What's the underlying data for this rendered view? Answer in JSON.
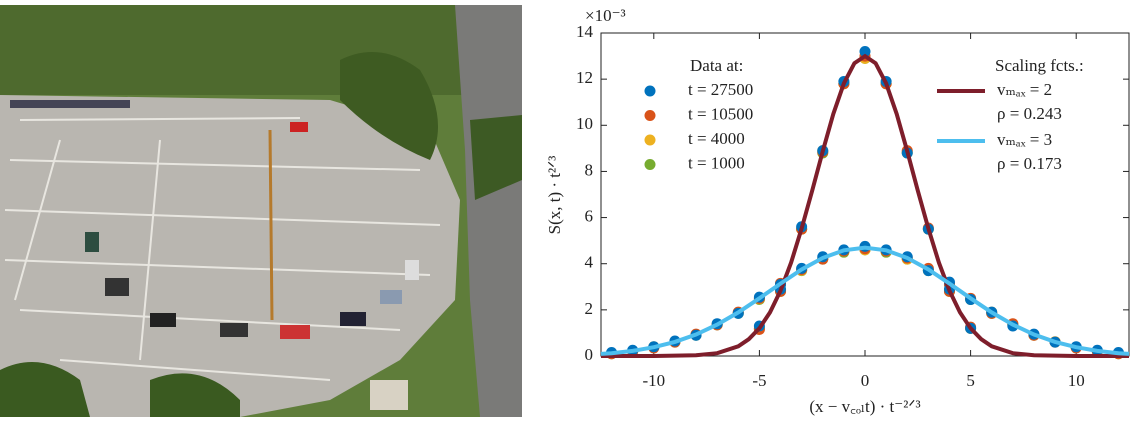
{
  "chart_data": {
    "type": "scatter",
    "y_multiplier": "×10⁻³",
    "x_label": "(x − v꜀ₒₗt) · t⁻²ᐟ³",
    "y_label": "S(x, t) · t²ᐟ³",
    "xlim": [
      -12.5,
      12.5
    ],
    "ylim": [
      0,
      14
    ],
    "xticks": [
      -10,
      -5,
      0,
      5,
      10
    ],
    "yticks": [
      0,
      2,
      4,
      6,
      8,
      10,
      12,
      14
    ],
    "grid": false,
    "legend_title": "Data at:",
    "x": [
      -12,
      -11,
      -10,
      -9,
      -8,
      -7,
      -6,
      -5,
      -4,
      -3,
      -2,
      -1,
      0,
      1,
      2,
      3,
      4,
      5,
      6,
      7,
      8,
      9,
      10,
      11,
      12,
      -5,
      -4,
      -3,
      -2,
      -1,
      0,
      1,
      2,
      3,
      4,
      5
    ],
    "series": [
      {
        "name": "t = 27500",
        "color": "#0072BD",
        "values": [
          0.15,
          0.25,
          0.4,
          0.65,
          0.9,
          1.4,
          1.85,
          2.55,
          3.1,
          3.8,
          4.3,
          4.6,
          4.75,
          4.6,
          4.3,
          3.7,
          3.2,
          2.45,
          1.9,
          1.3,
          0.95,
          0.6,
          0.4,
          0.25,
          0.15,
          1.3,
          2.9,
          5.6,
          8.9,
          11.9,
          13.2,
          11.9,
          8.8,
          5.5,
          2.9,
          1.2
        ]
      },
      {
        "name": "t = 10500",
        "color": "#D95319",
        "values": [
          0.1,
          0.2,
          0.35,
          0.6,
          0.95,
          1.35,
          1.9,
          2.5,
          3.15,
          3.75,
          4.2,
          4.55,
          4.65,
          4.55,
          4.25,
          3.8,
          3.1,
          2.5,
          1.85,
          1.4,
          0.9,
          0.6,
          0.35,
          0.2,
          0.1,
          1.15,
          2.8,
          5.5,
          8.85,
          11.8,
          13.0,
          11.8,
          8.9,
          5.55,
          2.8,
          1.25
        ]
      },
      {
        "name": "t = 4000",
        "color": "#EDB120",
        "values": [
          0.12,
          0.22,
          0.4,
          0.62,
          0.92,
          1.38,
          1.88,
          2.48,
          3.12,
          3.72,
          4.22,
          4.55,
          4.6,
          4.55,
          4.2,
          3.72,
          3.12,
          2.48,
          1.9,
          1.38,
          0.92,
          0.62,
          0.38,
          0.22,
          0.12,
          1.2,
          2.85,
          5.5,
          8.9,
          11.8,
          12.9,
          11.8,
          8.85,
          5.5,
          2.85,
          1.2
        ]
      },
      {
        "name": "t = 1000",
        "color": "#77AC30",
        "values": [
          0.1,
          0.2,
          0.38,
          0.6,
          0.9,
          1.35,
          1.85,
          2.45,
          3.1,
          3.7,
          4.2,
          4.5,
          4.6,
          4.5,
          4.2,
          3.7,
          3.1,
          2.45,
          1.85,
          1.35,
          0.9,
          0.6,
          0.38,
          0.2,
          0.1,
          1.2,
          2.8,
          5.5,
          8.8,
          11.8,
          12.9,
          11.8,
          8.8,
          5.5,
          2.8,
          1.2
        ]
      }
    ],
    "fits_title": "Scaling fcts.:",
    "fits": [
      {
        "name": "vₘₐₓ = 2",
        "rho": "ρ = 0.243",
        "color": "#7E1E2B",
        "x": [
          -12.5,
          -10,
          -8,
          -7,
          -6,
          -5.5,
          -5,
          -4.5,
          -4,
          -3.5,
          -3,
          -2.5,
          -2,
          -1.5,
          -1,
          -0.5,
          0,
          0.5,
          1,
          1.5,
          2,
          2.5,
          3,
          3.5,
          4,
          4.5,
          5,
          5.5,
          6,
          7,
          8,
          10,
          12.5
        ],
        "values": [
          0,
          0,
          0.03,
          0.12,
          0.42,
          0.73,
          1.2,
          1.89,
          2.83,
          4.05,
          5.52,
          7.17,
          8.88,
          10.49,
          11.82,
          12.69,
          13,
          12.69,
          11.82,
          10.49,
          8.88,
          7.17,
          5.52,
          4.05,
          2.83,
          1.89,
          1.2,
          0.73,
          0.42,
          0.12,
          0.03,
          0,
          0
        ]
      },
      {
        "name": "vₘₐₓ = 3",
        "rho": "ρ = 0.173",
        "color": "#4DBEEE",
        "x": [
          -12.5,
          -12,
          -11,
          -10,
          -9,
          -8,
          -7,
          -6,
          -5,
          -4,
          -3,
          -2,
          -1,
          0,
          1,
          2,
          3,
          4,
          5,
          6,
          7,
          8,
          9,
          10,
          11,
          12,
          12.5
        ],
        "values": [
          0.09,
          0.12,
          0.22,
          0.38,
          0.61,
          0.93,
          1.36,
          1.89,
          2.5,
          3.14,
          3.75,
          4.25,
          4.58,
          4.7,
          4.58,
          4.25,
          3.75,
          3.14,
          2.5,
          1.89,
          1.36,
          0.93,
          0.61,
          0.38,
          0.22,
          0.12,
          0.09
        ]
      }
    ]
  }
}
